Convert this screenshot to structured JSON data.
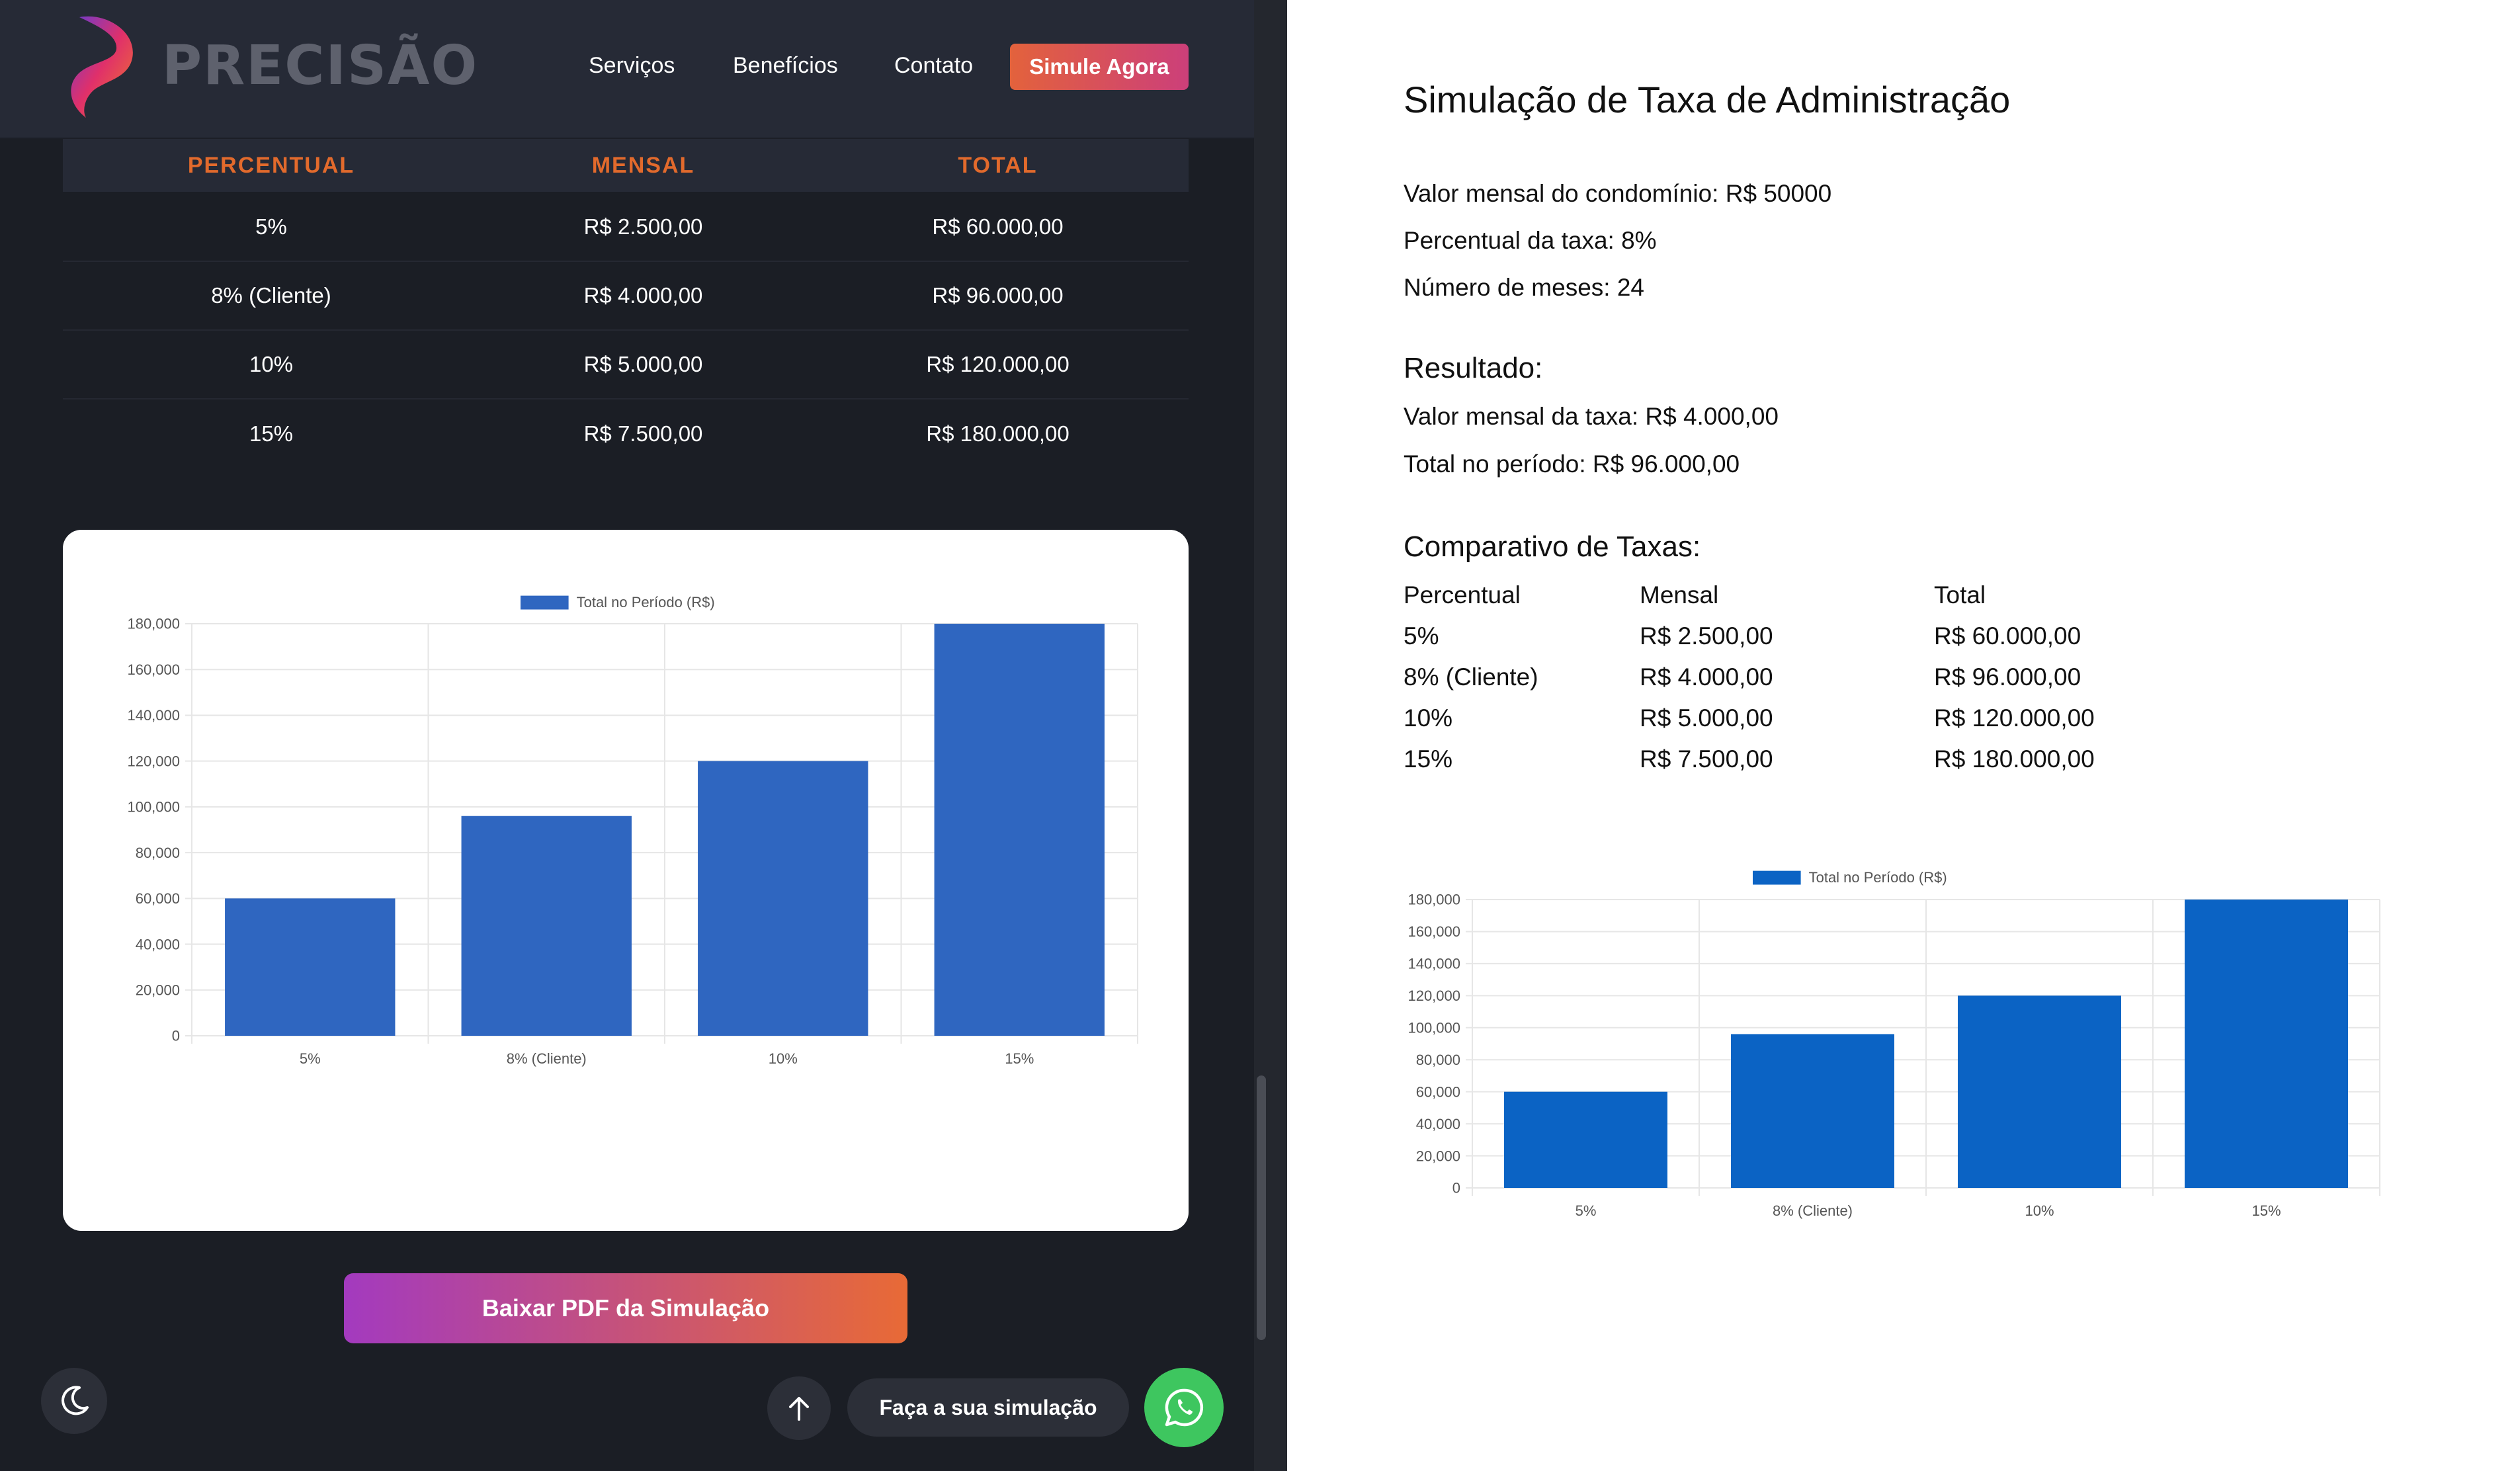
{
  "nav": {
    "brand": "PRECISÃO",
    "links": [
      "Serviços",
      "Benefícios",
      "Contato"
    ],
    "cta": "Simule Agora"
  },
  "table": {
    "headers": [
      "PERCENTUAL",
      "MENSAL",
      "TOTAL"
    ],
    "rows": [
      [
        "5%",
        "R$ 2.500,00",
        "R$ 60.000,00"
      ],
      [
        "8% (Cliente)",
        "R$ 4.000,00",
        "R$ 96.000,00"
      ],
      [
        "10%",
        "R$ 5.000,00",
        "R$ 120.000,00"
      ],
      [
        "15%",
        "R$ 7.500,00",
        "R$ 180.000,00"
      ]
    ]
  },
  "actions": {
    "pdf_button": "Baixar PDF da Simulação",
    "simulation_pill": "Faça a sua simulação"
  },
  "icons": {
    "theme": "moon-icon",
    "scroll_top": "arrow-up-icon",
    "whatsapp": "whatsapp-icon"
  },
  "colors": {
    "accent_orange": "#e26a2c",
    "bar_left": "#2f66c0",
    "bar_right": "#0b63c4",
    "whatsapp": "#3ec65f"
  },
  "pdf": {
    "title": "Simulação de Taxa de Administração",
    "lines": [
      "Valor mensal do condomínio: R$ 50000",
      "Percentual da taxa: 8%",
      "Número de meses: 24"
    ],
    "result_heading": "Resultado:",
    "result_lines": [
      "Valor mensal da taxa: R$ 4.000,00",
      "Total no período: R$ 96.000,00"
    ],
    "compare_heading": "Comparativo de Taxas:",
    "compare_headers": [
      "Percentual",
      "Mensal",
      "Total"
    ],
    "compare_rows": [
      [
        "5%",
        "R$ 2.500,00",
        "R$ 60.000,00"
      ],
      [
        "8% (Cliente)",
        "R$ 4.000,00",
        "R$ 96.000,00"
      ],
      [
        "10%",
        "R$ 5.000,00",
        "R$ 120.000,00"
      ],
      [
        "15%",
        "R$ 7.500,00",
        "R$ 180.000,00"
      ]
    ]
  },
  "chart_data": [
    {
      "type": "bar",
      "categories": [
        "5%",
        "8% (Cliente)",
        "10%",
        "15%"
      ],
      "series": [
        {
          "name": "Total no Período (R$)",
          "values": [
            60000,
            96000,
            120000,
            180000
          ]
        }
      ],
      "ylim": [
        0,
        180000
      ],
      "yticks": [
        "0",
        "20,000",
        "40,000",
        "60,000",
        "80,000",
        "100,000",
        "120,000",
        "140,000",
        "160,000",
        "180,000"
      ],
      "grid": true,
      "legend": "top-center"
    },
    {
      "type": "bar",
      "categories": [
        "5%",
        "8% (Cliente)",
        "10%",
        "15%"
      ],
      "series": [
        {
          "name": "Total no Período (R$)",
          "values": [
            60000,
            96000,
            120000,
            180000
          ]
        }
      ],
      "ylim": [
        0,
        180000
      ],
      "yticks": [
        "0",
        "20,000",
        "40,000",
        "60,000",
        "80,000",
        "100,000",
        "120,000",
        "140,000",
        "160,000",
        "180,000"
      ],
      "grid": true,
      "legend": "top-center"
    }
  ]
}
